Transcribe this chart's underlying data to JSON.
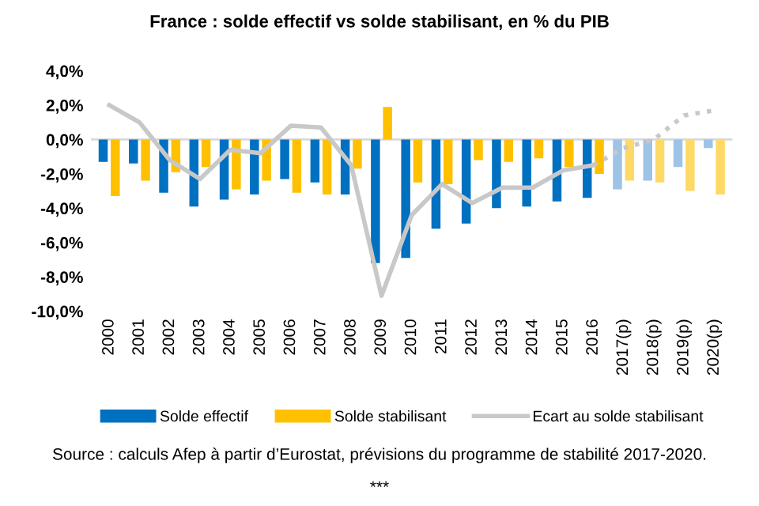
{
  "chart_data": {
    "type": "bar",
    "title": "France : solde effectif vs solde stabilisant, en % du PIB",
    "categories": [
      "2000",
      "2001",
      "2002",
      "2003",
      "2004",
      "2005",
      "2006",
      "2007",
      "2008",
      "2009",
      "2010",
      "2011",
      "2012",
      "2013",
      "2014",
      "2015",
      "2016",
      "2017(p)",
      "2018(p)",
      "2019(p)",
      "2020(p)"
    ],
    "series": [
      {
        "name": "Solde effectif",
        "color": "#0070c0",
        "colors": [
          "#0070c0",
          "#0070c0",
          "#0070c0",
          "#0070c0",
          "#0070c0",
          "#0070c0",
          "#0070c0",
          "#0070c0",
          "#0070c0",
          "#0070c0",
          "#0070c0",
          "#0070c0",
          "#0070c0",
          "#0070c0",
          "#0070c0",
          "#0070c0",
          "#0070c0",
          "#9dc3e6",
          "#9dc3e6",
          "#9dc3e6",
          "#9dc3e6"
        ],
        "values": [
          -1.3,
          -1.4,
          -3.1,
          -3.9,
          -3.5,
          -3.2,
          -2.3,
          -2.5,
          -3.2,
          -7.2,
          -6.9,
          -5.2,
          -4.9,
          -4.0,
          -3.9,
          -3.6,
          -3.4,
          -2.9,
          -2.4,
          -1.6,
          -0.5
        ]
      },
      {
        "name": "Solde stabilisant",
        "color": "#ffc000",
        "colors": [
          "#ffc000",
          "#ffc000",
          "#ffc000",
          "#ffc000",
          "#ffc000",
          "#ffc000",
          "#ffc000",
          "#ffc000",
          "#ffc000",
          "#ffc000",
          "#ffc000",
          "#ffc000",
          "#ffc000",
          "#ffc000",
          "#ffc000",
          "#ffc000",
          "#ffc000",
          "#ffd966",
          "#ffd966",
          "#ffd966",
          "#ffd966"
        ],
        "values": [
          -3.3,
          -2.4,
          -1.9,
          -1.6,
          -2.9,
          -2.4,
          -3.1,
          -3.2,
          -1.7,
          1.9,
          -2.5,
          -2.6,
          -1.2,
          -1.3,
          -1.1,
          -1.6,
          -2.0,
          -2.4,
          -2.5,
          -3.0,
          -3.2
        ]
      },
      {
        "name": "Ecart au solde stabilisant",
        "type": "line",
        "line_style": "solid",
        "color": "#c8c8c8",
        "values": [
          2.0,
          1.0,
          -1.2,
          -2.3,
          -0.6,
          -0.8,
          0.8,
          0.7,
          -1.5,
          -9.1,
          -4.4,
          -2.6,
          -3.7,
          -2.8,
          -2.8,
          -1.8,
          -1.5,
          null,
          null,
          null,
          null
        ]
      },
      {
        "type": "line",
        "line_style": "dotted",
        "color": "#c8c8c8",
        "values": [
          null,
          null,
          null,
          null,
          null,
          null,
          null,
          null,
          null,
          null,
          null,
          null,
          null,
          null,
          null,
          null,
          -1.5,
          -0.5,
          0.0,
          1.4,
          1.7
        ]
      }
    ],
    "ylim": [
      -10.0,
      4.0
    ],
    "yticks": [
      {
        "value": -10,
        "label": "-10,0%"
      },
      {
        "value": -8,
        "label": "-8,0%"
      },
      {
        "value": -6,
        "label": "-6,0%"
      },
      {
        "value": -4,
        "label": "-4,0%"
      },
      {
        "value": -2,
        "label": "-2,0%"
      },
      {
        "value": 0,
        "label": "0,0%"
      },
      {
        "value": 2,
        "label": "2,0%"
      },
      {
        "value": 4,
        "label": "4,0%"
      }
    ],
    "ref_lines": [
      {
        "axis": "y",
        "value": 0,
        "color": "#d9d9d9"
      }
    ],
    "grid": false,
    "legend": "bottom",
    "annotations": [
      "Source : calculs Afep à partir d’Eurostat, prévisions du programme de stabilité 2017-2020.",
      "***"
    ]
  }
}
